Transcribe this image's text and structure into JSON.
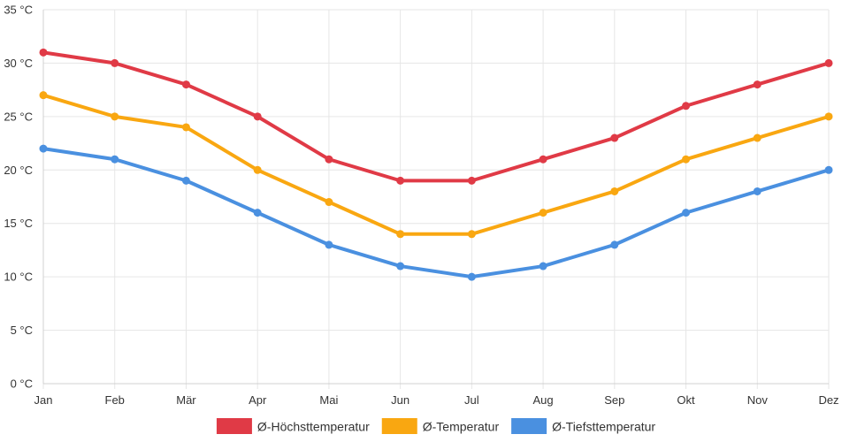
{
  "chart_data": {
    "type": "line",
    "title": "",
    "xlabel": "",
    "ylabel": "",
    "categories": [
      "Jan",
      "Feb",
      "Mär",
      "Apr",
      "Mai",
      "Jun",
      "Jul",
      "Aug",
      "Sep",
      "Okt",
      "Nov",
      "Dez"
    ],
    "ylim": [
      0,
      35
    ],
    "yticks": [
      0,
      5,
      10,
      15,
      20,
      25,
      30,
      35
    ],
    "y_unit": " °C",
    "grid": true,
    "legend_position": "bottom-center",
    "series": [
      {
        "name": "Ø-Höchsttemperatur",
        "color": "#e03a46",
        "values": [
          31,
          30,
          28,
          25,
          21,
          19,
          19,
          21,
          23,
          26,
          28,
          30
        ]
      },
      {
        "name": "Ø-Temperatur",
        "color": "#f9a711",
        "values": [
          27,
          25,
          24,
          20,
          17,
          14,
          14,
          16,
          18,
          21,
          23,
          25
        ]
      },
      {
        "name": "Ø-Tiefsttemperatur",
        "color": "#4a90e0",
        "values": [
          22,
          21,
          19,
          16,
          13,
          11,
          10,
          11,
          13,
          16,
          18,
          20
        ]
      }
    ]
  }
}
